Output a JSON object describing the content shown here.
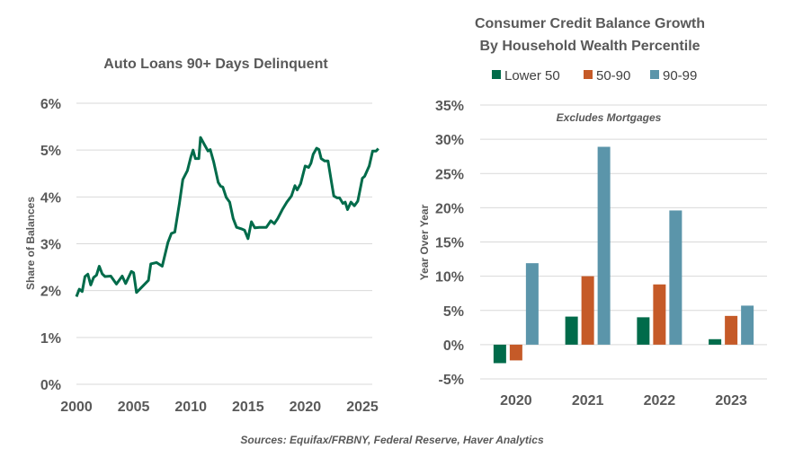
{
  "source": "Sources: Equifax/FRBNY, Federal Reserve, Haver Analytics",
  "colors": {
    "line": "#006B4A",
    "lower_50": "#006B4A",
    "50_90": "#C55A28",
    "90_99": "#5B95AA",
    "grid": "#D9D9D9",
    "text": "#595959"
  },
  "chart_data": [
    {
      "type": "line",
      "title": "Auto Loans 90+ Days Delinquent",
      "ylabel": "Share of Balances",
      "xlabel": "",
      "ylim": [
        0,
        6
      ],
      "xlim": [
        2000,
        2026.5
      ],
      "yticks": [
        "0%",
        "1%",
        "2%",
        "3%",
        "4%",
        "5%",
        "6%"
      ],
      "xticks": [
        "2000",
        "2005",
        "2010",
        "2015",
        "2020",
        "2025"
      ],
      "grid": true,
      "x": [
        2000,
        2000.25,
        2000.5,
        2000.75,
        2001,
        2001.25,
        2001.5,
        2001.75,
        2002,
        2002.25,
        2002.5,
        2003,
        2003.5,
        2004,
        2004.3,
        2004.8,
        2005,
        2005.25,
        2006.3,
        2006.5,
        2007,
        2007.5,
        2008,
        2008.3,
        2008.6,
        2009,
        2009.3,
        2009.7,
        2010,
        2010.2,
        2010.4,
        2010.7,
        2010.85,
        2011.2,
        2011.5,
        2011.7,
        2012,
        2012.4,
        2012.6,
        2012.8,
        2013.1,
        2013.4,
        2013.7,
        2014,
        2014.4,
        2014.7,
        2015,
        2015.3,
        2015.6,
        2016,
        2016.6,
        2017,
        2017.3,
        2017.6,
        2018,
        2018.4,
        2018.8,
        2019.1,
        2019.3,
        2019.6,
        2020,
        2020.3,
        2020.5,
        2020.7,
        2021,
        2021.2,
        2021.4,
        2021.7,
        2022,
        2022.3,
        2022.5,
        2022.8,
        2023,
        2023.3,
        2023.5,
        2023.7,
        2024,
        2024.3,
        2024.6,
        2025,
        2025.2,
        2025.6,
        2025.9,
        2026.2,
        2026.4
      ],
      "y": [
        1.87,
        2.03,
        1.98,
        2.3,
        2.35,
        2.12,
        2.28,
        2.33,
        2.52,
        2.36,
        2.3,
        2.31,
        2.14,
        2.31,
        2.15,
        2.41,
        2.38,
        1.96,
        2.22,
        2.57,
        2.6,
        2.52,
        3.03,
        3.22,
        3.25,
        3.86,
        4.37,
        4.56,
        4.85,
        5.0,
        4.82,
        4.82,
        5.27,
        5.11,
        4.98,
        5.01,
        4.75,
        4.31,
        4.23,
        4.21,
        3.99,
        3.89,
        3.54,
        3.35,
        3.32,
        3.29,
        3.11,
        3.47,
        3.34,
        3.35,
        3.35,
        3.49,
        3.43,
        3.54,
        3.73,
        3.89,
        4.02,
        4.24,
        4.15,
        4.28,
        4.66,
        4.63,
        4.72,
        4.91,
        5.04,
        5.01,
        4.82,
        4.77,
        4.77,
        4.31,
        4.02,
        3.98,
        3.98,
        3.86,
        3.89,
        3.73,
        3.89,
        3.81,
        3.91,
        4.4,
        4.44,
        4.66,
        4.98,
        4.98,
        5.03
      ]
    },
    {
      "type": "bar",
      "title": "Consumer Credit Balance Growth",
      "subtitle": "By Household Wealth Percentile",
      "annotation": "Excludes Mortgages",
      "ylabel": "Year Over Year",
      "xlabel": "",
      "ylim": [
        -5,
        35
      ],
      "yticks": [
        "-5%",
        "0%",
        "5%",
        "10%",
        "15%",
        "20%",
        "25%",
        "30%",
        "35%"
      ],
      "grid": true,
      "legend": "top",
      "categories": [
        "2020",
        "2021",
        "2022",
        "2023"
      ],
      "series": [
        {
          "name": "Lower 50",
          "values": [
            -2.7,
            4.1,
            4.0,
            0.8
          ]
        },
        {
          "name": "50-90",
          "values": [
            -2.3,
            10.0,
            8.8,
            4.2
          ]
        },
        {
          "name": "90-99",
          "values": [
            11.9,
            28.9,
            19.6,
            5.7
          ]
        }
      ]
    }
  ]
}
